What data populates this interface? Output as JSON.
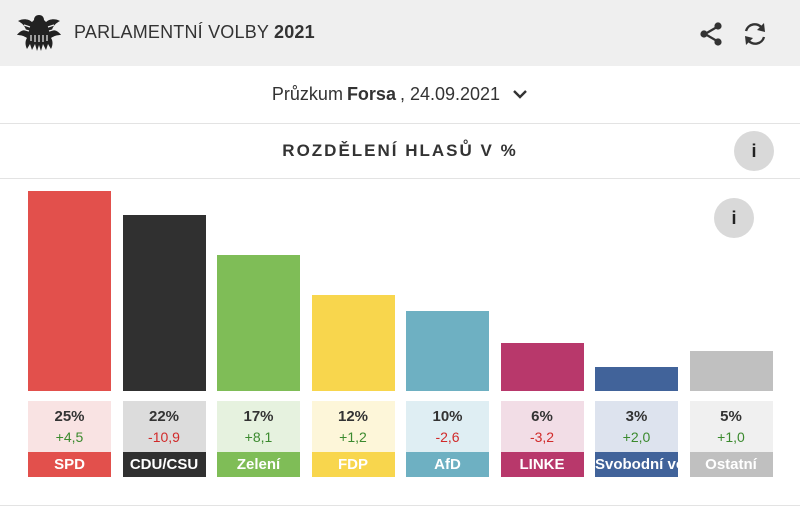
{
  "header": {
    "title_prefix": "PARLAMENTNÍ VOLBY",
    "title_year": "2021",
    "logo_icon": "bundestag-eagle-icon",
    "share_icon": "share-icon",
    "refresh_icon": "refresh-icon"
  },
  "poll": {
    "prefix": "Průzkum",
    "institute": "Forsa",
    "date": ", 24.09.2021",
    "dropdown_icon": "chevron-down-icon"
  },
  "section": {
    "title": "ROZDĚLENÍ  HLASŮ  V  %",
    "info_label": "i"
  },
  "chart_info_label": "i",
  "chart_data": {
    "type": "bar",
    "categories": [
      "SPD",
      "CDU/CSU",
      "Zelení",
      "FDP",
      "AfD",
      "LINKE",
      "Svobodní voliči",
      "Ostatní"
    ],
    "values": [
      25,
      22,
      17,
      12,
      10,
      6,
      3,
      5
    ],
    "value_labels": [
      "25%",
      "22%",
      "17%",
      "12%",
      "10%",
      "6%",
      "3%",
      "5%"
    ],
    "changes": [
      "+4,5",
      "-10,9",
      "+8,1",
      "+1,2",
      "-2,6",
      "-3,2",
      "+2,0",
      "+1,0"
    ],
    "colors": [
      "#e2504c",
      "#303030",
      "#7fbd57",
      "#f8d64d",
      "#6eb0c2",
      "#b8386b",
      "#41639a",
      "#c0c0c0"
    ],
    "cell_colors": [
      "#f9e3e3",
      "#dcdcdc",
      "#e6f2df",
      "#fdf6d9",
      "#dfeef3",
      "#f2dde6",
      "#dde3ee",
      "#f0f0f0"
    ],
    "positive_color": "#3b8a2e",
    "negative_color": "#d12a2a",
    "ylim": [
      0,
      25
    ]
  }
}
